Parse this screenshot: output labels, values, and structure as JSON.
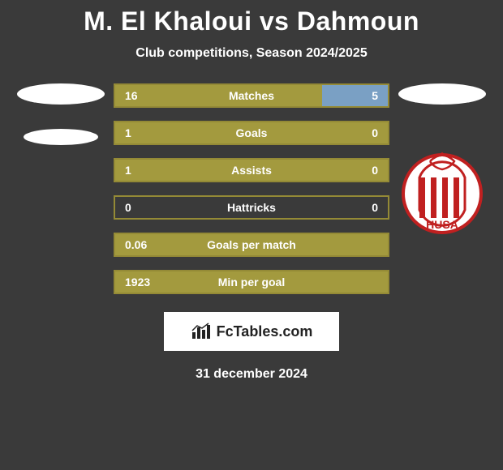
{
  "title": "M. El Khaloui vs Dahmoun",
  "subtitle": "Club competitions, Season 2024/2025",
  "date": "31 december 2024",
  "logo_text": "FcTables.com",
  "colors": {
    "background": "#3a3a3a",
    "bar_border": "#948a36",
    "bar_left_fill": "#a39a3e",
    "bar_right_fill": "#7aa0c4",
    "text": "#ffffff",
    "logo_bg": "#ffffff",
    "logo_text": "#222222"
  },
  "left_badge": {
    "ovals": 2
  },
  "right_badge": {
    "label": "HUSA",
    "ring_color": "#c02020",
    "stripe_colors": [
      "#c02020",
      "#ffffff"
    ]
  },
  "stats": [
    {
      "label": "Matches",
      "left_val": "16",
      "right_val": "5",
      "left_pct": 76,
      "right_pct": 24
    },
    {
      "label": "Goals",
      "left_val": "1",
      "right_val": "0",
      "left_pct": 100,
      "right_pct": 0
    },
    {
      "label": "Assists",
      "left_val": "1",
      "right_val": "0",
      "left_pct": 100,
      "right_pct": 0
    },
    {
      "label": "Hattricks",
      "left_val": "0",
      "right_val": "0",
      "left_pct": 0,
      "right_pct": 0
    },
    {
      "label": "Goals per match",
      "left_val": "0.06",
      "right_val": "",
      "left_pct": 100,
      "right_pct": 0
    },
    {
      "label": "Min per goal",
      "left_val": "1923",
      "right_val": "",
      "left_pct": 100,
      "right_pct": 0
    }
  ]
}
